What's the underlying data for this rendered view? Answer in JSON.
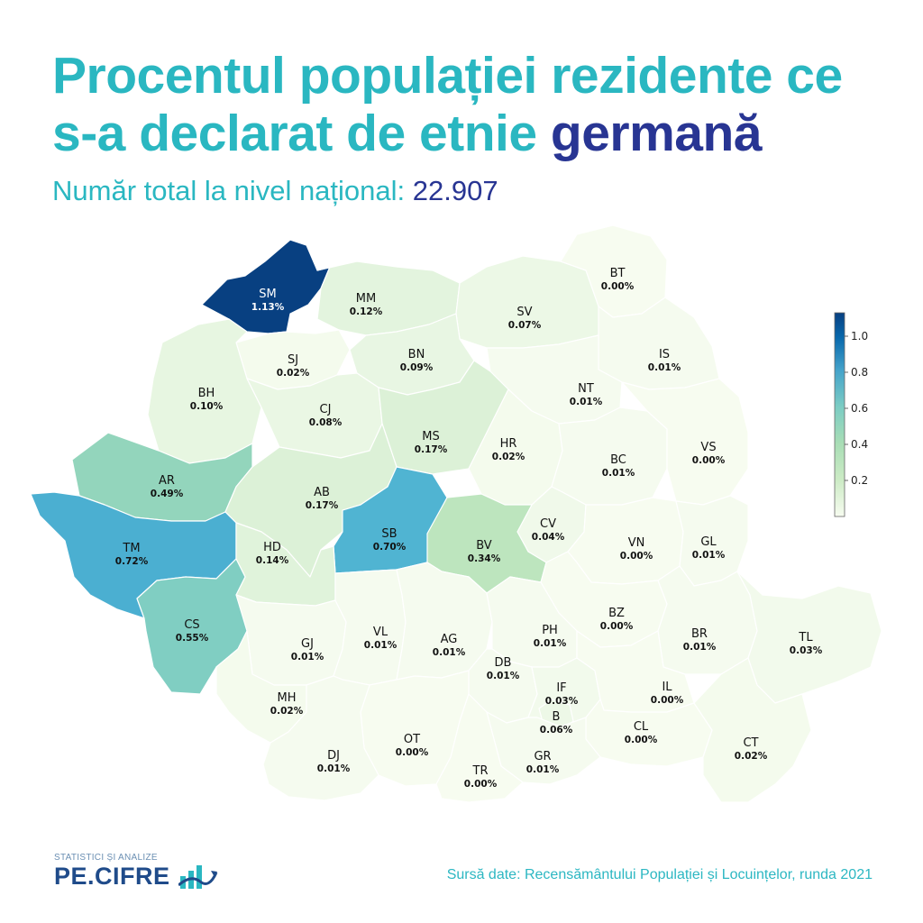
{
  "title": {
    "line1": "Procentul populației rezidente ce",
    "line2_start": "s-a declarat de etnie ",
    "line2_highlight": "germană",
    "color_teal": "#2ab7c1",
    "color_navy": "#283593"
  },
  "subtitle": {
    "label": "Număr total la nivel național: ",
    "value": "22.907"
  },
  "colorbar": {
    "ticks": [
      "0.2",
      "0.4",
      "0.6",
      "0.8",
      "1.0"
    ],
    "tick_values": [
      0.2,
      0.4,
      0.6,
      0.8,
      1.0
    ],
    "min": 0,
    "max": 1.13,
    "colorscale": "GnBu"
  },
  "map_data": {
    "type": "choropleth",
    "unit": "%",
    "regions": [
      {
        "code": "SM",
        "value": 1.13,
        "label": "1.13%"
      },
      {
        "code": "MM",
        "value": 0.12,
        "label": "0.12%"
      },
      {
        "code": "SV",
        "value": 0.07,
        "label": "0.07%"
      },
      {
        "code": "BT",
        "value": 0.0,
        "label": "0.00%"
      },
      {
        "code": "SJ",
        "value": 0.02,
        "label": "0.02%"
      },
      {
        "code": "BN",
        "value": 0.09,
        "label": "0.09%"
      },
      {
        "code": "IS",
        "value": 0.01,
        "label": "0.01%"
      },
      {
        "code": "BH",
        "value": 0.1,
        "label": "0.10%"
      },
      {
        "code": "CJ",
        "value": 0.08,
        "label": "0.08%"
      },
      {
        "code": "NT",
        "value": 0.01,
        "label": "0.01%"
      },
      {
        "code": "MS",
        "value": 0.17,
        "label": "0.17%"
      },
      {
        "code": "HR",
        "value": 0.02,
        "label": "0.02%"
      },
      {
        "code": "AR",
        "value": 0.49,
        "label": "0.49%"
      },
      {
        "code": "BC",
        "value": 0.01,
        "label": "0.01%"
      },
      {
        "code": "VS",
        "value": 0.0,
        "label": "0.00%"
      },
      {
        "code": "AB",
        "value": 0.17,
        "label": "0.17%"
      },
      {
        "code": "CV",
        "value": 0.04,
        "label": "0.04%"
      },
      {
        "code": "SB",
        "value": 0.7,
        "label": "0.70%"
      },
      {
        "code": "TM",
        "value": 0.72,
        "label": "0.72%"
      },
      {
        "code": "HD",
        "value": 0.14,
        "label": "0.14%"
      },
      {
        "code": "BV",
        "value": 0.34,
        "label": "0.34%"
      },
      {
        "code": "VN",
        "value": 0.0,
        "label": "0.00%"
      },
      {
        "code": "GL",
        "value": 0.01,
        "label": "0.01%"
      },
      {
        "code": "BZ",
        "value": 0.0,
        "label": "0.00%"
      },
      {
        "code": "CS",
        "value": 0.55,
        "label": "0.55%"
      },
      {
        "code": "GJ",
        "value": 0.01,
        "label": "0.01%"
      },
      {
        "code": "VL",
        "value": 0.01,
        "label": "0.01%"
      },
      {
        "code": "AG",
        "value": 0.01,
        "label": "0.01%"
      },
      {
        "code": "PH",
        "value": 0.01,
        "label": "0.01%"
      },
      {
        "code": "BR",
        "value": 0.01,
        "label": "0.01%"
      },
      {
        "code": "TL",
        "value": 0.03,
        "label": "0.03%"
      },
      {
        "code": "DB",
        "value": 0.01,
        "label": "0.01%"
      },
      {
        "code": "IF",
        "value": 0.03,
        "label": "0.03%"
      },
      {
        "code": "IL",
        "value": 0.0,
        "label": "0.00%"
      },
      {
        "code": "MH",
        "value": 0.02,
        "label": "0.02%"
      },
      {
        "code": "B",
        "value": 0.06,
        "label": "0.06%"
      },
      {
        "code": "OT",
        "value": 0.0,
        "label": "0.00%"
      },
      {
        "code": "CL",
        "value": 0.0,
        "label": "0.00%"
      },
      {
        "code": "DJ",
        "value": 0.01,
        "label": "0.01%"
      },
      {
        "code": "CT",
        "value": 0.02,
        "label": "0.02%"
      },
      {
        "code": "GR",
        "value": 0.01,
        "label": "0.01%"
      },
      {
        "code": "TR",
        "value": 0.0,
        "label": "0.00%"
      }
    ]
  },
  "logo": {
    "tagline": "STATISTICI ȘI ANALIZE",
    "name": "PE.CIFRE"
  },
  "source": "Sursă date: Recensământului Populației și Locuințelor, runda 2021"
}
